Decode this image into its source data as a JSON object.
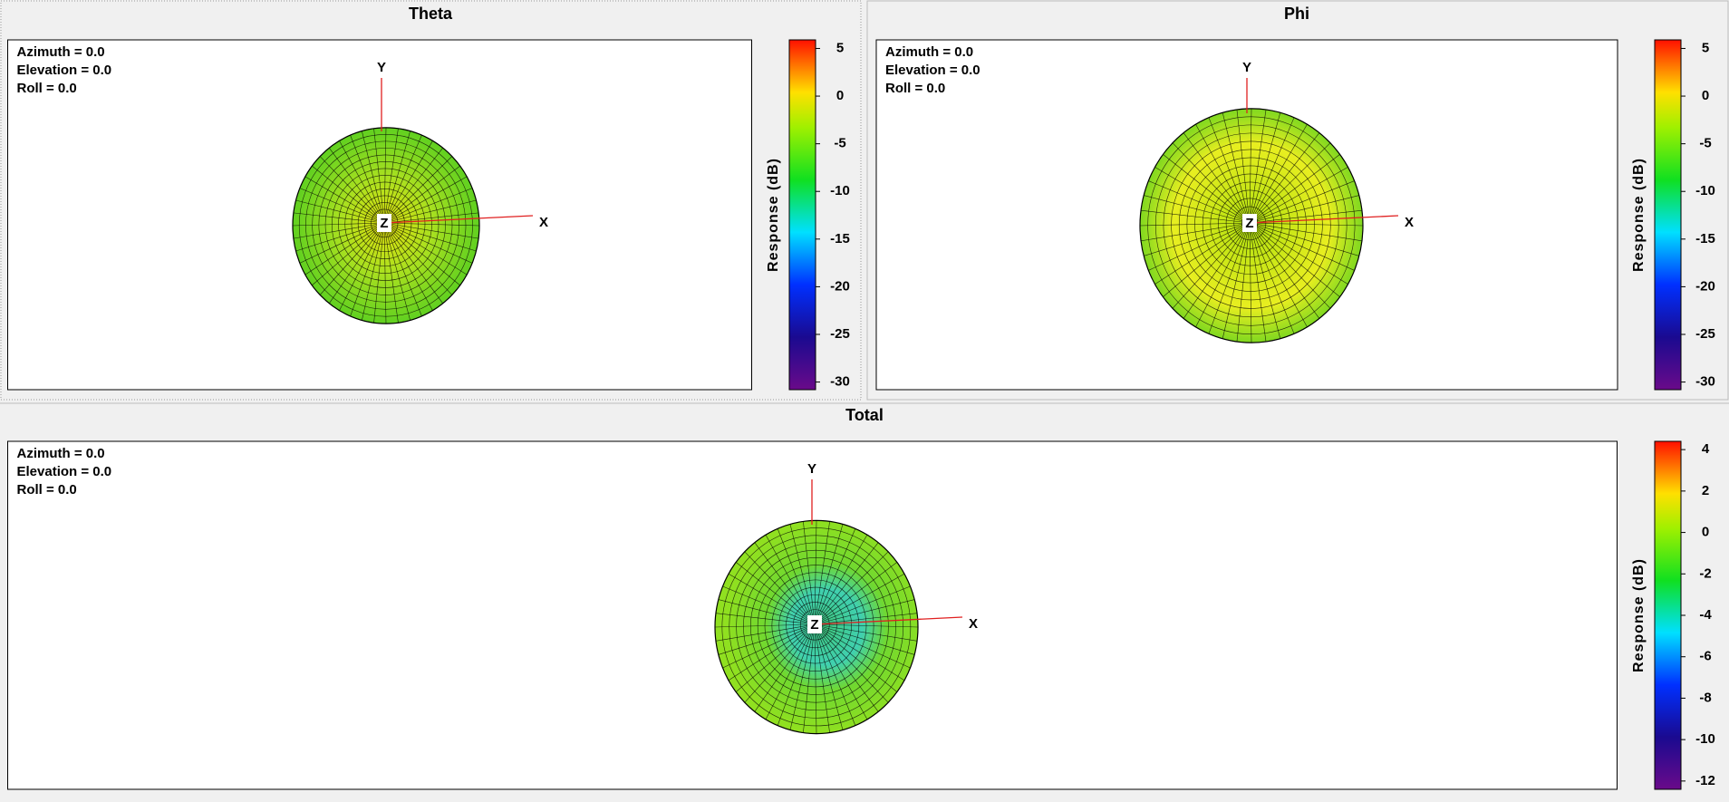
{
  "panels": [
    {
      "title": "Theta",
      "view": [
        "Azimuth = 0.0",
        "Elevation = 0.0",
        "Roll = 0.0"
      ],
      "axes": [
        "X",
        "Y",
        "Z"
      ],
      "colorbar": {
        "label": "Response (dB)",
        "lim": [
          -30.8,
          5.9
        ],
        "ticks": [
          5,
          0,
          -5,
          -10,
          -15,
          -20,
          -25,
          -30
        ]
      }
    },
    {
      "title": "Phi",
      "view": [
        "Azimuth = 0.0",
        "Elevation = 0.0",
        "Roll = 0.0"
      ],
      "axes": [
        "X",
        "Y",
        "Z"
      ],
      "colorbar": {
        "label": "Response (dB)",
        "lim": [
          -30.8,
          5.9
        ],
        "ticks": [
          5,
          0,
          -5,
          -10,
          -15,
          -20,
          -25,
          -30
        ]
      }
    },
    {
      "title": "Total",
      "view": [
        "Azimuth = 0.0",
        "Elevation = 0.0",
        "Roll = 0.0"
      ],
      "axes": [
        "X",
        "Y",
        "Z"
      ],
      "colorbar": {
        "label": "Response (dB)",
        "lim": [
          -12.4,
          4.4
        ],
        "ticks": [
          4,
          2,
          0,
          -2,
          -4,
          -6,
          -8,
          -10,
          -12
        ]
      }
    }
  ]
}
